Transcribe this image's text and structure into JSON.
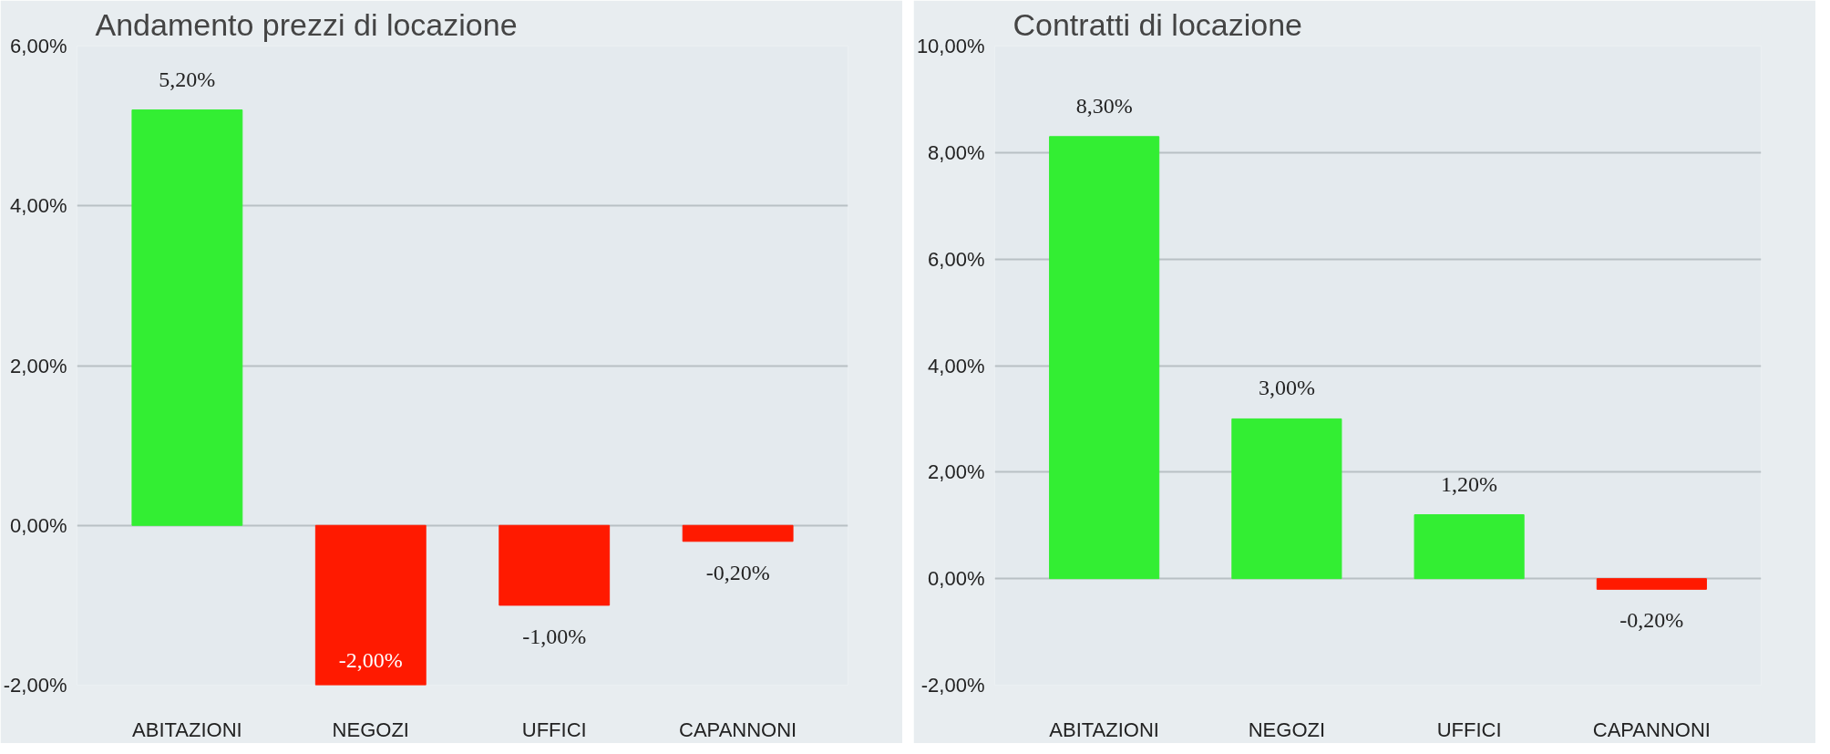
{
  "chart_data": [
    {
      "type": "bar",
      "title": "Andamento prezzi di locazione",
      "categories": [
        "ABITAZIONI",
        "NEGOZI",
        "UFFICI",
        "CAPANNONI"
      ],
      "values": [
        5.2,
        -2.0,
        -1.0,
        -0.2
      ],
      "colors": [
        "#33ee33",
        "#ff1a00",
        "#ff1a00",
        "#ff1a00"
      ],
      "value_labels": [
        "5,20%",
        "-2,00%",
        "-1,00%",
        "-0,20%"
      ],
      "ylim": [
        -2,
        6
      ],
      "yticks": [
        {
          "value": -2,
          "label": "-2,00%"
        },
        {
          "value": 0,
          "label": "0,00%"
        },
        {
          "value": 2,
          "label": "2,00%"
        },
        {
          "value": 4,
          "label": "4,00%"
        },
        {
          "value": 6,
          "label": "6,00%"
        }
      ],
      "grid": "y"
    },
    {
      "type": "bar",
      "title": "Contratti di locazione",
      "categories": [
        "ABITAZIONI",
        "NEGOZI",
        "UFFICI",
        "CAPANNONI"
      ],
      "values": [
        8.3,
        3.0,
        1.2,
        -0.2
      ],
      "colors": [
        "#33ee33",
        "#33ee33",
        "#33ee33",
        "#ff1a00"
      ],
      "value_labels": [
        "8,30%",
        "3,00%",
        "1,20%",
        "-0,20%"
      ],
      "ylim": [
        -2,
        10
      ],
      "yticks": [
        {
          "value": -2,
          "label": "-2,00%"
        },
        {
          "value": 0,
          "label": "0,00%"
        },
        {
          "value": 2,
          "label": "2,00%"
        },
        {
          "value": 4,
          "label": "4,00%"
        },
        {
          "value": 6,
          "label": "6,00%"
        },
        {
          "value": 8,
          "label": "8,00%"
        },
        {
          "value": 10,
          "label": "10,00%"
        }
      ],
      "grid": "y"
    }
  ]
}
